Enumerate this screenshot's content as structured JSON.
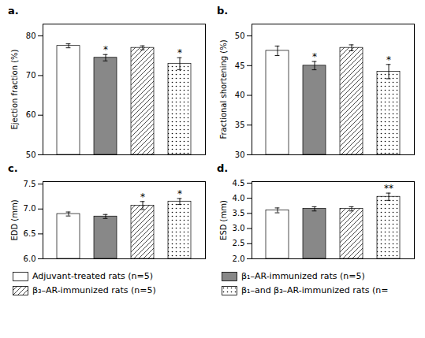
{
  "chart_data": [
    {
      "type": "bar",
      "title": "a.",
      "ylabel": "Ejection fraction (%)",
      "categories": [
        "Adjuvant-treated rats (n=5)",
        "β₁–AR-immunized rats (n=5)",
        "β₃–AR-immunized rats (n=5)",
        "β₁–and β₃–AR-immunized rats (n="
      ],
      "values": [
        77.5,
        74.5,
        77.0,
        73.0
      ],
      "errors": [
        0.5,
        0.8,
        0.5,
        1.5
      ],
      "annotations": [
        null,
        "*",
        null,
        "*"
      ],
      "colors": [
        "white",
        "#888888",
        "white",
        "white"
      ],
      "ylim": [
        50,
        83
      ],
      "yticks": [
        50,
        60,
        70,
        80
      ],
      "tick_labels": "y",
      "grid": false,
      "legend": "bottom"
    },
    {
      "type": "bar",
      "title": "b.",
      "ylabel": "Fractional shortening (%)",
      "categories": [
        "Adjuvant-treated rats (n=5)",
        "β₁–AR-immunized rats (n=5)",
        "β₃–AR-immunized rats (n=5)",
        "β₁–and β₃–AR-immunized rats (n="
      ],
      "values": [
        47.5,
        45.0,
        48.0,
        44.0
      ],
      "errors": [
        0.8,
        0.7,
        0.5,
        1.2
      ],
      "annotations": [
        null,
        "*",
        null,
        "*"
      ],
      "colors": [
        "white",
        "#888888",
        "white",
        "white"
      ],
      "ylim": [
        30,
        52
      ],
      "yticks": [
        30,
        35,
        40,
        45,
        50
      ],
      "tick_labels": "y",
      "grid": false,
      "legend": "bottom"
    },
    {
      "type": "bar",
      "title": "c.",
      "ylabel": "EDD (mm)",
      "categories": [
        "Adjuvant-treated rats (n=5)",
        "β₁–AR-immunized rats (n=5)",
        "β₃–AR-immunized rats (n=5)",
        "β₁–and β₃–AR-immunized rats (n="
      ],
      "values": [
        6.9,
        6.85,
        7.07,
        7.15
      ],
      "errors": [
        0.04,
        0.04,
        0.08,
        0.06
      ],
      "annotations": [
        null,
        null,
        "*",
        "*"
      ],
      "colors": [
        "white",
        "#888888",
        "white",
        "white"
      ],
      "ylim": [
        6.0,
        7.55
      ],
      "yticks": [
        {
          "value": 6.0,
          "label": "6.0"
        },
        {
          "value": 6.5,
          "label": "6.5"
        },
        {
          "value": 7.0,
          "label": "7.0"
        },
        {
          "value": 7.5,
          "label": "7.5"
        }
      ],
      "tick_labels": "y",
      "grid": false,
      "legend": "bottom"
    },
    {
      "type": "bar",
      "title": "d.",
      "ylabel": "ESD (mm)",
      "categories": [
        "Adjuvant-treated rats (n=5)",
        "β₁–AR-immunized rats (n=5)",
        "β₃–AR-immunized rats (n=5)",
        "β₁–and β₃–AR-immunized rats (n="
      ],
      "values": [
        3.6,
        3.65,
        3.65,
        4.05
      ],
      "errors": [
        0.08,
        0.07,
        0.07,
        0.12
      ],
      "annotations": [
        null,
        null,
        null,
        "**"
      ],
      "colors": [
        "white",
        "#888888",
        "white",
        "white"
      ],
      "ylim": [
        2.0,
        4.55
      ],
      "yticks": [
        {
          "value": 2.0,
          "label": "2.0"
        },
        {
          "value": 2.5,
          "label": "2.5"
        },
        {
          "value": 3.0,
          "label": "3.0"
        },
        {
          "value": 3.5,
          "label": "3.5"
        },
        {
          "value": 4.0,
          "label": "4.0"
        },
        {
          "value": 4.5,
          "label": "4.5"
        }
      ],
      "tick_labels": "y",
      "grid": false,
      "legend": "bottom"
    }
  ]
}
